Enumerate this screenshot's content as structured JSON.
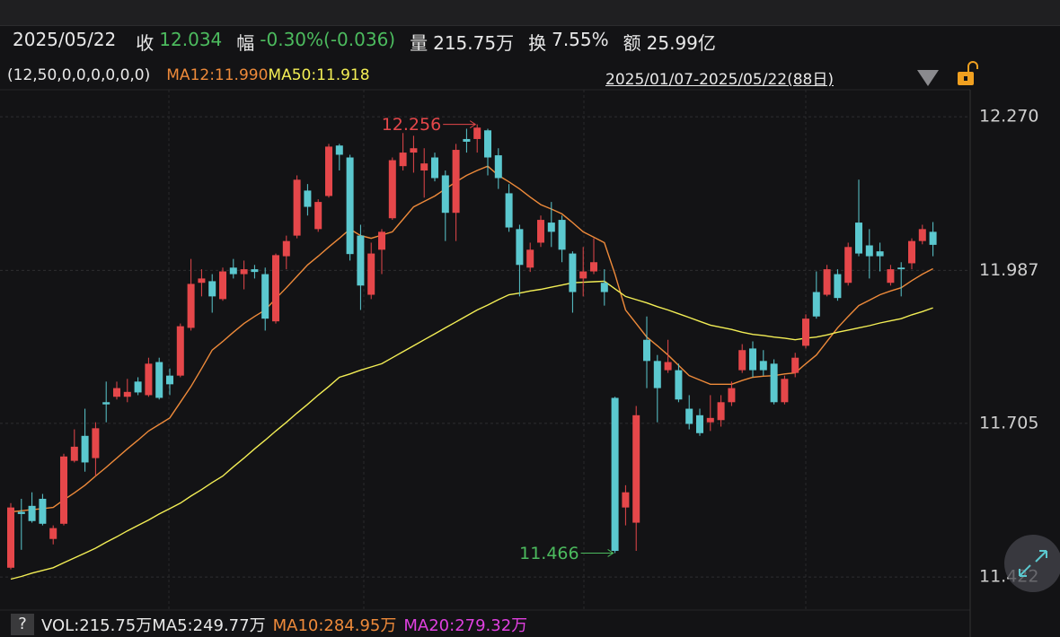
{
  "header": {
    "date": "2025/05/22",
    "fields": [
      {
        "label": "收",
        "value": "12.034",
        "color": "#4cbb5e"
      },
      {
        "label": "幅",
        "value": "-0.30%(-0.036)",
        "color": "#4cbb5e"
      },
      {
        "label": "量",
        "value": "215.75万",
        "color": "#e8e8e8"
      },
      {
        "label": "换",
        "value": "7.55%",
        "color": "#e8e8e8"
      },
      {
        "label": "额",
        "value": "25.99亿",
        "color": "#e8e8e8"
      }
    ]
  },
  "indicator": {
    "params": "(12,50,0,0,0,0,0,0)",
    "range": "2025/01/07-2025/05/22(88日)"
  },
  "volume_legend": {
    "help": "?",
    "items": [
      {
        "text": "VOL:215.75万MA5:249.77万",
        "color": "#e8e8e8"
      },
      {
        "text": "MA10:284.95万",
        "color": "#ee8a3a"
      },
      {
        "text": "MA20:279.32万",
        "color": "#e040e0"
      }
    ]
  },
  "chart_data": {
    "type": "candlestick",
    "up_color": "#e5474a",
    "down_color": "#5bc8cf",
    "open": [
      11.439,
      11.542,
      11.553,
      11.566,
      11.492,
      11.52,
      11.636,
      11.682,
      11.641,
      11.744,
      11.754,
      11.754,
      11.782,
      11.757,
      11.818,
      11.793,
      11.793,
      11.881,
      11.964,
      11.967,
      11.934,
      11.992,
      11.98,
      11.989,
      11.98,
      11.893,
      12.013,
      12.051,
      12.134,
      12.063,
      12.124,
      12.217,
      12.195,
      12.051,
      11.942,
      12.025,
      12.083,
      12.179,
      12.204,
      12.171,
      12.195,
      12.162,
      12.093,
      12.229,
      12.229,
      12.245,
      12.199,
      12.129,
      12.063,
      11.992,
      12.038,
      12.075,
      12.08,
      12.018,
      11.972,
      11.985,
      11.964,
      11.752,
      11.55,
      11.522,
      11.859,
      11.82,
      11.803,
      11.803,
      11.732,
      11.72,
      11.707,
      11.711,
      11.744,
      11.803,
      11.843,
      11.82,
      11.815,
      11.744,
      11.798,
      11.848,
      11.947,
      11.942,
      11.98,
      11.964,
      12.075,
      12.033,
      12.022,
      11.964,
      11.992,
      12.0,
      12.041,
      12.058
    ],
    "high": [
      11.558,
      11.566,
      11.578,
      11.575,
      11.517,
      11.649,
      11.694,
      11.732,
      11.707,
      11.782,
      11.782,
      11.787,
      11.79,
      11.826,
      11.826,
      11.806,
      11.889,
      12.008,
      11.989,
      11.98,
      11.992,
      12.008,
      12.005,
      11.997,
      11.992,
      12.018,
      12.051,
      12.162,
      12.146,
      12.118,
      12.22,
      12.22,
      12.2,
      12.071,
      12.038,
      12.063,
      12.195,
      12.24,
      12.235,
      12.212,
      12.204,
      12.171,
      12.22,
      12.248,
      12.256,
      12.248,
      12.212,
      12.146,
      12.071,
      12.038,
      12.088,
      12.113,
      12.088,
      12.022,
      12.03,
      12.046,
      11.989,
      11.754,
      11.591,
      11.737,
      11.902,
      11.831,
      11.859,
      11.815,
      11.757,
      11.732,
      11.757,
      11.757,
      11.782,
      11.851,
      11.856,
      11.84,
      11.823,
      11.793,
      11.835,
      11.906,
      11.985,
      11.997,
      11.989,
      12.038,
      12.154,
      12.063,
      12.038,
      11.997,
      12.002,
      12.046,
      12.071,
      12.076
    ],
    "low": [
      11.436,
      11.472,
      11.522,
      11.517,
      11.482,
      11.517,
      11.633,
      11.616,
      11.608,
      11.707,
      11.749,
      11.744,
      11.757,
      11.754,
      11.749,
      11.757,
      11.79,
      11.876,
      11.939,
      11.909,
      11.931,
      11.972,
      11.952,
      11.972,
      11.876,
      11.889,
      11.989,
      12.046,
      12.088,
      12.058,
      12.121,
      12.171,
      12.005,
      11.914,
      11.934,
      11.98,
      12.08,
      12.171,
      12.167,
      12.121,
      12.151,
      12.041,
      12.041,
      12.204,
      12.204,
      12.162,
      12.137,
      12.058,
      11.939,
      11.984,
      12.03,
      12.03,
      12.002,
      11.909,
      11.939,
      11.98,
      11.922,
      11.466,
      11.517,
      11.47,
      11.77,
      11.707,
      11.798,
      11.744,
      11.694,
      11.682,
      11.691,
      11.699,
      11.737,
      11.798,
      11.79,
      11.793,
      11.74,
      11.74,
      11.79,
      11.843,
      11.898,
      11.939,
      11.931,
      11.959,
      12.013,
      11.972,
      11.985,
      11.959,
      11.939,
      11.989,
      12.035,
      12.013
    ],
    "close": [
      11.55,
      11.538,
      11.525,
      11.52,
      11.512,
      11.644,
      11.662,
      11.633,
      11.696,
      11.74,
      11.77,
      11.763,
      11.762,
      11.815,
      11.752,
      11.777,
      11.884,
      11.962,
      11.972,
      11.939,
      11.985,
      11.98,
      11.989,
      11.984,
      11.898,
      12.015,
      12.041,
      12.154,
      12.104,
      12.113,
      12.215,
      12.2,
      12.017,
      11.959,
      12.018,
      12.058,
      12.19,
      12.204,
      12.212,
      12.184,
      12.157,
      12.093,
      12.209,
      12.224,
      12.25,
      12.195,
      12.157,
      12.066,
      11.997,
      12.025,
      12.08,
      12.058,
      12.025,
      11.947,
      11.985,
      12.002,
      11.947,
      11.47,
      11.578,
      11.72,
      11.82,
      11.77,
      11.818,
      11.749,
      11.704,
      11.687,
      11.715,
      11.744,
      11.77,
      11.84,
      11.803,
      11.803,
      11.744,
      11.787,
      11.826,
      11.898,
      11.902,
      11.989,
      11.936,
      12.03,
      12.018,
      12.013,
      12.013,
      11.989,
      11.989,
      12.041,
      12.063,
      12.034
    ],
    "series": [
      {
        "name": "MA12:11.990",
        "color": "#ee8a3a",
        "values": [
          11.542,
          11.544,
          11.546,
          11.548,
          11.55,
          11.564,
          11.577,
          11.591,
          11.608,
          11.624,
          11.641,
          11.658,
          11.674,
          11.691,
          11.703,
          11.715,
          11.744,
          11.773,
          11.806,
          11.84,
          11.856,
          11.873,
          11.889,
          11.902,
          11.914,
          11.935,
          11.955,
          11.976,
          11.997,
          12.013,
          12.03,
          12.046,
          12.063,
          12.051,
          12.046,
          12.052,
          12.058,
          12.081,
          12.104,
          12.114,
          12.124,
          12.137,
          12.15,
          12.162,
          12.171,
          12.179,
          12.162,
          12.15,
          12.137,
          12.122,
          12.108,
          12.1,
          12.091,
          12.075,
          12.058,
          12.048,
          12.038,
          11.98,
          11.914,
          11.889,
          11.864,
          11.848,
          11.831,
          11.812,
          11.793,
          11.785,
          11.777,
          11.777,
          11.777,
          11.784,
          11.79,
          11.792,
          11.793,
          11.796,
          11.798,
          11.815,
          11.831,
          11.856,
          11.881,
          11.902,
          11.922,
          11.932,
          11.942,
          11.949,
          11.955,
          11.968,
          11.98,
          11.99
        ]
      },
      {
        "name": "MA50:11.918",
        "color": "#f3ee55",
        "values": [
          11.418,
          11.423,
          11.429,
          11.434,
          11.439,
          11.448,
          11.457,
          11.466,
          11.475,
          11.486,
          11.496,
          11.507,
          11.517,
          11.527,
          11.538,
          11.548,
          11.558,
          11.571,
          11.583,
          11.596,
          11.608,
          11.625,
          11.641,
          11.658,
          11.674,
          11.691,
          11.707,
          11.724,
          11.74,
          11.757,
          11.773,
          11.79,
          11.796,
          11.803,
          11.809,
          11.815,
          11.826,
          11.837,
          11.848,
          11.859,
          11.87,
          11.881,
          11.892,
          11.903,
          11.914,
          11.923,
          11.933,
          11.942,
          11.945,
          11.949,
          11.952,
          11.956,
          11.96,
          11.964,
          11.965,
          11.966,
          11.967,
          11.953,
          11.939,
          11.933,
          11.927,
          11.92,
          11.914,
          11.907,
          11.9,
          11.893,
          11.886,
          11.882,
          11.878,
          11.873,
          11.869,
          11.867,
          11.864,
          11.862,
          11.859,
          11.862,
          11.864,
          11.868,
          11.873,
          11.877,
          11.881,
          11.885,
          11.89,
          11.894,
          11.898,
          11.905,
          11.911,
          11.918
        ]
      }
    ],
    "ylim": [
      11.394,
      12.3
    ],
    "yticks": [
      {
        "value": 12.27,
        "label": "12.270"
      },
      11.987,
      11.705,
      11.422
    ],
    "grid": true
  }
}
